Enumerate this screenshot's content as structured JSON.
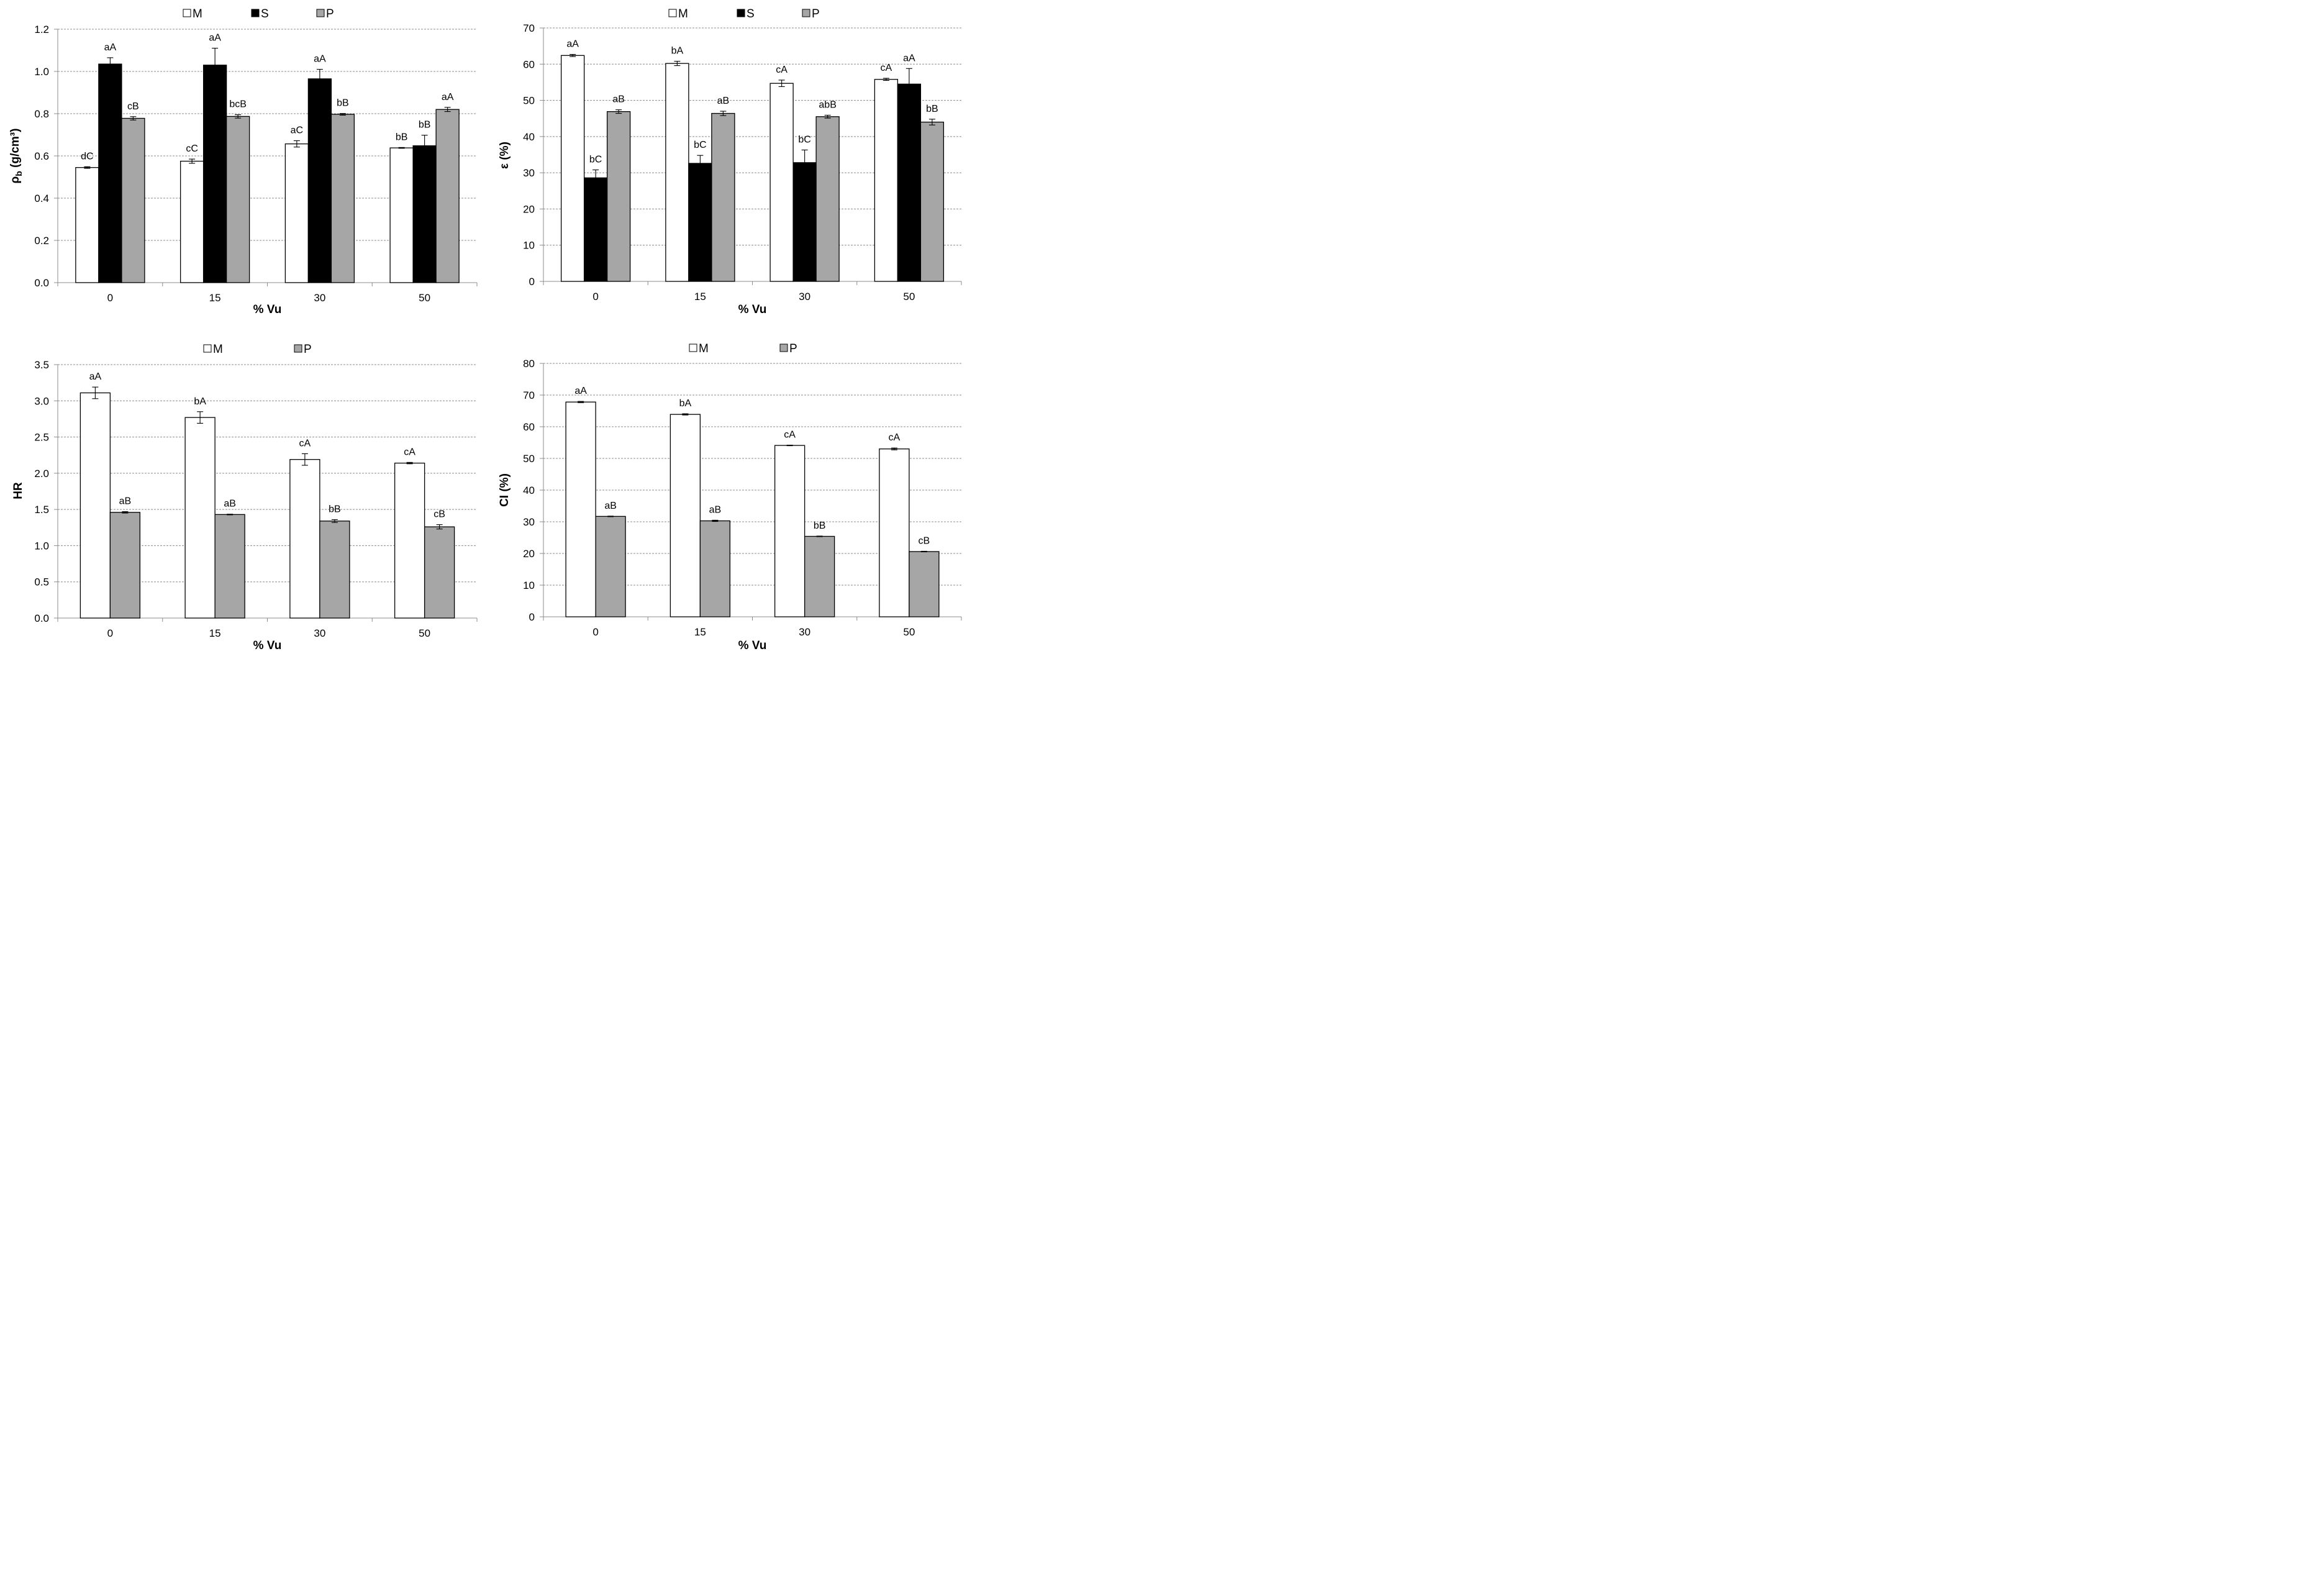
{
  "chart_data": [
    {
      "type": "bar",
      "ylabel": "ρb (g/cm³)",
      "ylabel_main": "ρ",
      "ylabel_sub": "b",
      "ylabel_rest": " (g/cm³)",
      "xlabel": "% Vu",
      "categories": [
        "0",
        "15",
        "30",
        "50"
      ],
      "ylim": [
        0,
        1.2
      ],
      "yticks": [
        "0.0",
        "0.2",
        "0.4",
        "0.6",
        "0.8",
        "1.0",
        "1.2"
      ],
      "grid": true,
      "legend": "top-center",
      "series": [
        {
          "name": "M",
          "color": "#ffffff",
          "values": [
            0.545,
            0.575,
            0.657,
            0.638
          ],
          "errors": [
            0.004,
            0.01,
            0.015,
            0.002
          ],
          "labels": [
            "dC",
            "cC",
            "aC",
            "bB"
          ]
        },
        {
          "name": "S",
          "color": "#000000",
          "values": [
            1.035,
            1.03,
            0.965,
            0.648
          ],
          "errors": [
            0.03,
            0.08,
            0.045,
            0.05
          ],
          "labels": [
            "aA",
            "aA",
            "aA",
            "bB"
          ]
        },
        {
          "name": "P",
          "color": "#a6a6a6",
          "values": [
            0.778,
            0.787,
            0.797,
            0.82
          ],
          "errors": [
            0.008,
            0.008,
            0.004,
            0.01
          ],
          "labels": [
            "cB",
            "bcB",
            "bB",
            "aA"
          ]
        }
      ]
    },
    {
      "type": "bar",
      "ylabel": "ε (%)",
      "xlabel": "% Vu",
      "categories": [
        "0",
        "15",
        "30",
        "50"
      ],
      "ylim": [
        0,
        70
      ],
      "yticks": [
        "0",
        "10",
        "20",
        "30",
        "40",
        "50",
        "60",
        "70"
      ],
      "grid": true,
      "legend": "top-center",
      "series": [
        {
          "name": "M",
          "color": "#ffffff",
          "values": [
            62.4,
            60.2,
            54.7,
            55.8
          ],
          "errors": [
            0.3,
            0.6,
            0.9,
            0.3
          ],
          "labels": [
            "aA",
            "bA",
            "cA",
            "cA"
          ]
        },
        {
          "name": "S",
          "color": "#000000",
          "values": [
            28.6,
            32.6,
            32.8,
            54.5
          ],
          "errors": [
            2.2,
            2.2,
            3.5,
            4.3
          ],
          "labels": [
            "bC",
            "bC",
            "bC",
            "aA"
          ]
        },
        {
          "name": "P",
          "color": "#a6a6a6",
          "values": [
            46.9,
            46.4,
            45.5,
            44.0
          ],
          "errors": [
            0.5,
            0.6,
            0.4,
            0.8
          ],
          "labels": [
            "aB",
            "aB",
            "abB",
            "bB"
          ]
        }
      ]
    },
    {
      "type": "bar",
      "ylabel": "HR",
      "xlabel": "% Vu",
      "categories": [
        "0",
        "15",
        "30",
        "50"
      ],
      "ylim": [
        0,
        3.5
      ],
      "yticks": [
        "0.0",
        "0.5",
        "1.0",
        "1.5",
        "2.0",
        "2.5",
        "3.0",
        "3.5"
      ],
      "grid": true,
      "legend": "top-center",
      "series": [
        {
          "name": "M",
          "color": "#ffffff",
          "values": [
            3.11,
            2.77,
            2.19,
            2.14
          ],
          "errors": [
            0.08,
            0.08,
            0.08,
            0.01
          ],
          "labels": [
            "aA",
            "bA",
            "cA",
            "cA"
          ]
        },
        {
          "name": "P",
          "color": "#a6a6a6",
          "values": [
            1.46,
            1.43,
            1.34,
            1.26
          ],
          "errors": [
            0.01,
            0.005,
            0.02,
            0.03
          ],
          "labels": [
            "aB",
            "aB",
            "bB",
            "cB"
          ]
        }
      ]
    },
    {
      "type": "bar",
      "ylabel": "CI (%)",
      "xlabel": "% Vu",
      "categories": [
        "0",
        "15",
        "30",
        "50"
      ],
      "ylim": [
        0,
        80
      ],
      "yticks": [
        "0",
        "10",
        "20",
        "30",
        "40",
        "50",
        "60",
        "70",
        "80"
      ],
      "grid": true,
      "legend": "top-center",
      "series": [
        {
          "name": "M",
          "color": "#ffffff",
          "values": [
            67.8,
            63.9,
            54.1,
            53.0
          ],
          "errors": [
            0.2,
            0.2,
            0.1,
            0.3
          ],
          "labels": [
            "aA",
            "bA",
            "cA",
            "cA"
          ]
        },
        {
          "name": "P",
          "color": "#a6a6a6",
          "values": [
            31.7,
            30.3,
            25.4,
            20.6
          ],
          "errors": [
            0.1,
            0.2,
            0.1,
            0.1
          ],
          "labels": [
            "aB",
            "aB",
            "bB",
            "cB"
          ]
        }
      ]
    }
  ]
}
